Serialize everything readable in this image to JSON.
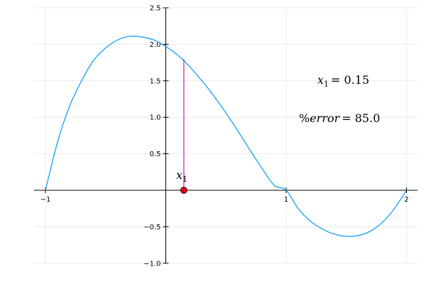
{
  "chart_data": {
    "type": "line",
    "xlim": [
      -1.1,
      2.1
    ],
    "ylim": [
      -1.0,
      2.5
    ],
    "grid": true,
    "x_ticks": [
      -1,
      1,
      2
    ],
    "x_tick_labels": [
      "−1",
      "1",
      "2"
    ],
    "y_ticks": [
      -1.0,
      -0.5,
      0.5,
      1.0,
      1.5,
      2.0,
      2.5
    ],
    "y_tick_labels": [
      "−1.0",
      "−0.5",
      "0.5",
      "1.0",
      "1.5",
      "2.0",
      "2.5"
    ],
    "series": [
      {
        "color": "#009af9",
        "x": [
          -1.0,
          -0.9,
          -0.8,
          -0.7,
          -0.6,
          -0.5,
          -0.4,
          -0.3,
          -0.2,
          -0.1,
          0.0,
          0.1,
          0.2,
          0.3,
          0.4,
          0.5,
          0.6,
          0.7,
          0.8,
          0.9,
          1.0,
          1.1,
          1.2,
          1.3,
          1.4,
          1.5,
          1.6,
          1.7,
          1.8,
          1.9,
          2.0
        ],
        "y": [
          0.0,
          0.657,
          1.15,
          1.5,
          1.78,
          1.95,
          2.06,
          2.11,
          2.1,
          2.06,
          1.97,
          1.85,
          1.69,
          1.5,
          1.29,
          1.06,
          0.81,
          0.55,
          0.3,
          0.07,
          0.0,
          -0.25,
          -0.42,
          -0.53,
          -0.6,
          -0.63,
          -0.62,
          -0.56,
          -0.44,
          -0.25,
          0.0
        ]
      }
    ],
    "vertical_segment": {
      "x": 0.15,
      "y_from": 0.0,
      "y_to": 1.8,
      "color": "#c64fbf"
    },
    "marker": {
      "x": 0.15,
      "y": 0.0,
      "color": "#e10000"
    },
    "annotations": {
      "point_label": "x",
      "point_label_sub": "1",
      "x1_lhs": "x",
      "x1_sub": "1",
      "x1_rhs": "= 0.15",
      "error_pct": "%",
      "error_word": "error",
      "error_rhs": "= 85.0"
    }
  }
}
